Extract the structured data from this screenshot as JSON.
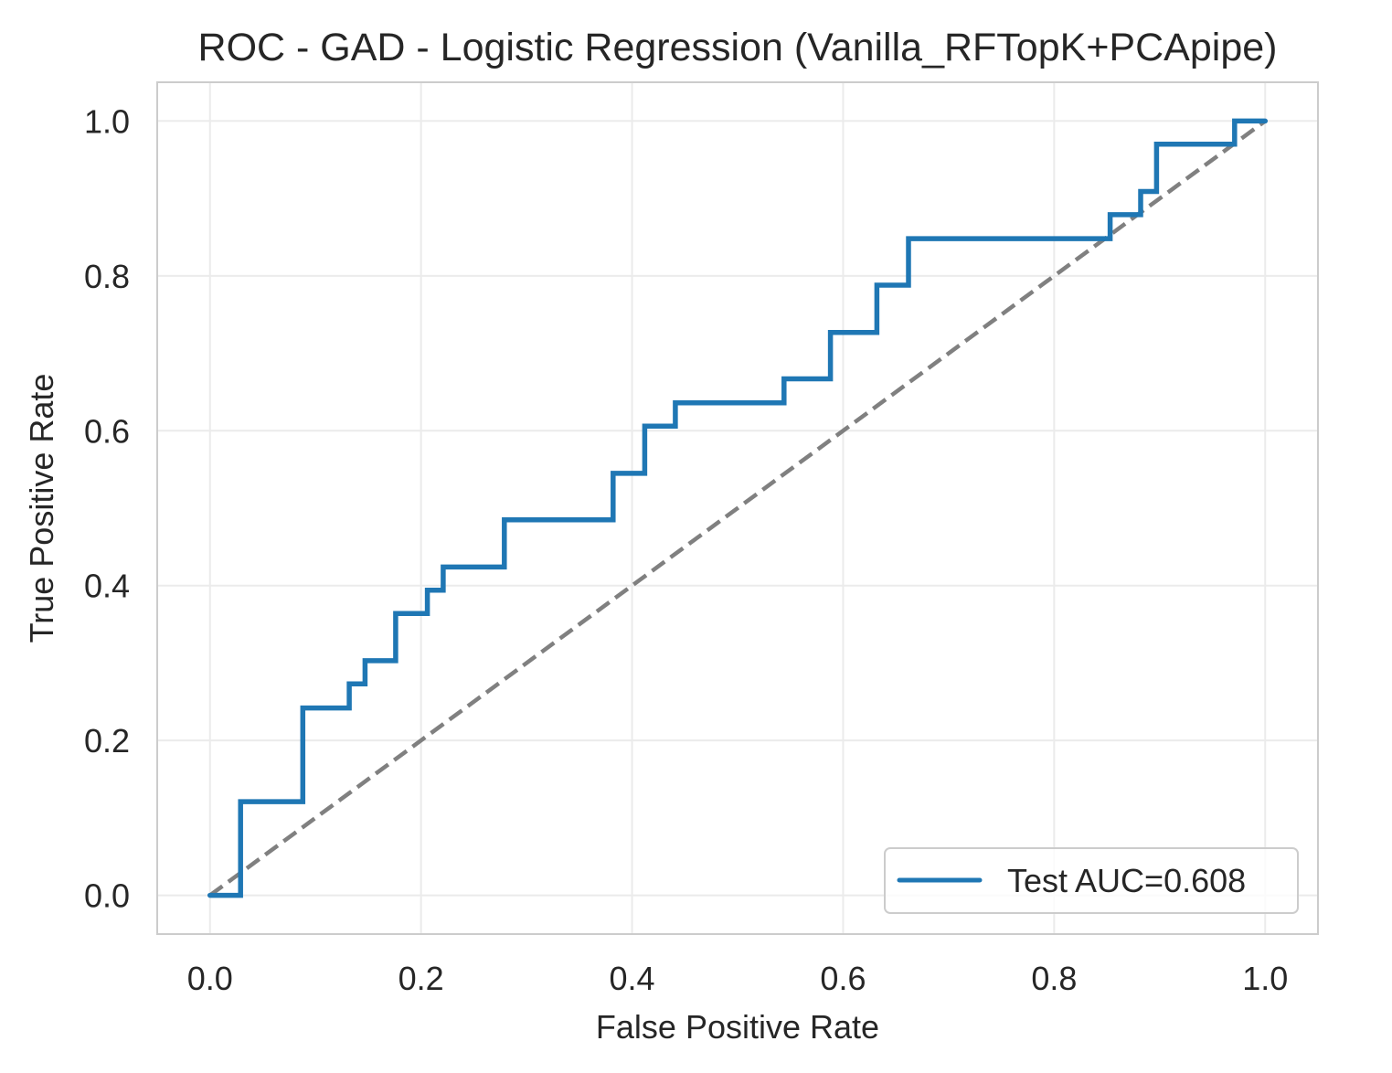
{
  "chart_data": {
    "type": "line",
    "title": "ROC - GAD - Logistic Regression (Vanilla_RFTopK+PCApipe)",
    "xlabel": "False Positive Rate",
    "ylabel": "True Positive Rate",
    "xlim": [
      -0.05,
      1.05
    ],
    "ylim": [
      -0.05,
      1.05
    ],
    "x_ticks": [
      "0.0",
      "0.2",
      "0.4",
      "0.6",
      "0.8",
      "1.0"
    ],
    "y_ticks": [
      "0.0",
      "0.2",
      "0.4",
      "0.6",
      "0.8",
      "1.0"
    ],
    "grid": true,
    "legend_position": "lower-right",
    "series": [
      {
        "name": "Test AUC=0.608",
        "color": "#1f77b4",
        "style": "solid",
        "x": [
          0.0,
          0.029,
          0.029,
          0.088,
          0.088,
          0.132,
          0.132,
          0.147,
          0.147,
          0.176,
          0.176,
          0.206,
          0.206,
          0.221,
          0.221,
          0.279,
          0.279,
          0.382,
          0.382,
          0.412,
          0.412,
          0.441,
          0.441,
          0.544,
          0.544,
          0.588,
          0.588,
          0.632,
          0.632,
          0.662,
          0.662,
          0.853,
          0.853,
          0.882,
          0.882,
          0.897,
          0.897,
          0.971,
          0.971,
          1.0
        ],
        "y": [
          0.0,
          0.0,
          0.121,
          0.121,
          0.242,
          0.242,
          0.273,
          0.273,
          0.303,
          0.303,
          0.364,
          0.364,
          0.394,
          0.394,
          0.424,
          0.424,
          0.485,
          0.485,
          0.545,
          0.545,
          0.606,
          0.606,
          0.636,
          0.636,
          0.667,
          0.667,
          0.727,
          0.727,
          0.788,
          0.788,
          0.848,
          0.848,
          0.879,
          0.879,
          0.909,
          0.909,
          0.97,
          0.97,
          1.0,
          1.0
        ]
      },
      {
        "name": "",
        "color": "#808080",
        "style": "dashed",
        "x": [
          0.0,
          1.0
        ],
        "y": [
          0.0,
          1.0
        ]
      }
    ]
  }
}
